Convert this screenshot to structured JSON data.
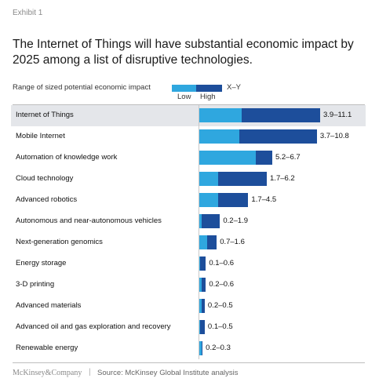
{
  "exhibit": "Exhibit 1",
  "title": "The Internet of Things will have substantial economic impact by 2025 among a list of disruptive technologies.",
  "legend": {
    "caption": "Range of sized potential economic impact",
    "low": "Low",
    "high": "High",
    "range_unit": "X–Y",
    "low_color": "#2fa7df",
    "high_color": "#1d4e9b"
  },
  "chart_data": {
    "type": "bar",
    "orientation": "horizontal",
    "stacked_range": true,
    "highlighted_category": "Internet of Things",
    "categories": [
      "Internet of Things",
      "Mobile Internet",
      "Automation of knowledge work",
      "Cloud technology",
      "Advanced robotics",
      "Autonomous and near-autonomous vehicles",
      "Next-generation genomics",
      "Energy storage",
      "3-D printing",
      "Advanced materials",
      "Advanced oil and gas exploration and recovery",
      "Renewable energy"
    ],
    "series": [
      {
        "name": "Low",
        "values": [
          3.9,
          3.7,
          5.2,
          1.7,
          1.7,
          0.2,
          0.7,
          0.1,
          0.2,
          0.2,
          0.1,
          0.2
        ]
      },
      {
        "name": "High",
        "values": [
          11.1,
          10.8,
          6.7,
          6.2,
          4.5,
          1.9,
          1.6,
          0.6,
          0.6,
          0.5,
          0.5,
          0.3
        ]
      }
    ],
    "range_labels": [
      "3.9–11.1",
      "3.7–10.8",
      "5.2–6.7",
      "1.7–6.2",
      "1.7–4.5",
      "0.2–1.9",
      "0.7–1.6",
      "0.1–0.6",
      "0.2–0.6",
      "0.2–0.5",
      "0.1–0.5",
      "0.2–0.3"
    ],
    "xlim": [
      0,
      11.1
    ],
    "grid": false
  },
  "footer": {
    "brand": "McKinsey&Company",
    "separator": "|",
    "source": "Source: McKinsey Global Institute analysis"
  }
}
